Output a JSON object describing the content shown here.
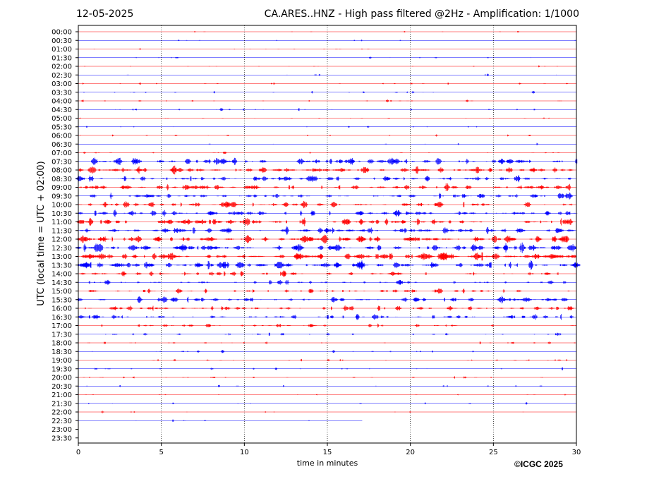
{
  "header": {
    "date": "12-05-2025",
    "title": "CA.ARES..HNZ - High pass filtered @2Hz - Amplification: 1/1000"
  },
  "footer": {
    "copyright": "©ICGC 2025"
  },
  "colors": {
    "series_a": "#ff0000",
    "series_b": "#0000ff",
    "grid": "#000000"
  },
  "chart_data": {
    "type": "line",
    "title": "CA.ARES..HNZ - High pass filtered @2Hz - Amplification: 1/1000",
    "xlabel": "time in minutes",
    "ylabel": "UTC (local time = UTC + 02:00)",
    "xlim": [
      0,
      30
    ],
    "x_ticks": [
      0,
      5,
      10,
      15,
      20,
      25,
      30
    ],
    "vertical_grid_at": [
      5,
      10,
      15,
      20,
      25
    ],
    "grid": true,
    "rows": [
      {
        "label": "00:00",
        "color": "#ff0000",
        "activity": 0.03,
        "end": 30
      },
      {
        "label": "00:30",
        "color": "#0000ff",
        "activity": 0.03,
        "end": 30
      },
      {
        "label": "01:00",
        "color": "#ff0000",
        "activity": 0.05,
        "end": 30
      },
      {
        "label": "01:30",
        "color": "#0000ff",
        "activity": 0.06,
        "end": 30
      },
      {
        "label": "02:00",
        "color": "#ff0000",
        "activity": 0.07,
        "end": 30
      },
      {
        "label": "02:30",
        "color": "#0000ff",
        "activity": 0.08,
        "end": 30
      },
      {
        "label": "03:00",
        "color": "#ff0000",
        "activity": 0.1,
        "end": 30
      },
      {
        "label": "03:30",
        "color": "#0000ff",
        "activity": 0.14,
        "end": 30
      },
      {
        "label": "04:00",
        "color": "#ff0000",
        "activity": 0.12,
        "end": 30
      },
      {
        "label": "04:30",
        "color": "#0000ff",
        "activity": 0.14,
        "end": 30
      },
      {
        "label": "05:00",
        "color": "#ff0000",
        "activity": 0.1,
        "end": 30
      },
      {
        "label": "05:30",
        "color": "#0000ff",
        "activity": 0.06,
        "end": 30
      },
      {
        "label": "06:00",
        "color": "#ff0000",
        "activity": 0.05,
        "end": 30
      },
      {
        "label": "06:30",
        "color": "#0000ff",
        "activity": 0.06,
        "end": 30
      },
      {
        "label": "07:00",
        "color": "#ff0000",
        "activity": 0.12,
        "end": 30
      },
      {
        "label": "07:30",
        "color": "#0000ff",
        "activity": 0.7,
        "end": 30
      },
      {
        "label": "08:00",
        "color": "#ff0000",
        "activity": 0.75,
        "end": 30
      },
      {
        "label": "08:30",
        "color": "#0000ff",
        "activity": 0.65,
        "end": 30
      },
      {
        "label": "09:00",
        "color": "#ff0000",
        "activity": 0.7,
        "end": 30
      },
      {
        "label": "09:30",
        "color": "#0000ff",
        "activity": 0.65,
        "end": 30
      },
      {
        "label": "10:00",
        "color": "#ff0000",
        "activity": 0.6,
        "end": 30
      },
      {
        "label": "10:30",
        "color": "#0000ff",
        "activity": 0.65,
        "end": 30
      },
      {
        "label": "11:00",
        "color": "#ff0000",
        "activity": 0.75,
        "end": 30
      },
      {
        "label": "11:30",
        "color": "#0000ff",
        "activity": 0.75,
        "end": 30
      },
      {
        "label": "12:00",
        "color": "#ff0000",
        "activity": 0.85,
        "end": 30
      },
      {
        "label": "12:30",
        "color": "#0000ff",
        "activity": 0.9,
        "end": 30
      },
      {
        "label": "13:00",
        "color": "#ff0000",
        "activity": 0.95,
        "end": 30
      },
      {
        "label": "13:30",
        "color": "#0000ff",
        "activity": 0.85,
        "end": 30
      },
      {
        "label": "14:00",
        "color": "#ff0000",
        "activity": 0.5,
        "end": 30
      },
      {
        "label": "14:30",
        "color": "#0000ff",
        "activity": 0.45,
        "end": 30
      },
      {
        "label": "15:00",
        "color": "#ff0000",
        "activity": 0.5,
        "end": 30
      },
      {
        "label": "15:30",
        "color": "#0000ff",
        "activity": 0.55,
        "end": 30
      },
      {
        "label": "16:00",
        "color": "#ff0000",
        "activity": 0.55,
        "end": 30
      },
      {
        "label": "16:30",
        "color": "#0000ff",
        "activity": 0.55,
        "end": 30
      },
      {
        "label": "17:00",
        "color": "#ff0000",
        "activity": 0.35,
        "end": 30
      },
      {
        "label": "17:30",
        "color": "#0000ff",
        "activity": 0.25,
        "end": 30
      },
      {
        "label": "18:00",
        "color": "#ff0000",
        "activity": 0.15,
        "end": 30
      },
      {
        "label": "18:30",
        "color": "#0000ff",
        "activity": 0.15,
        "end": 30
      },
      {
        "label": "19:00",
        "color": "#ff0000",
        "activity": 0.15,
        "end": 30
      },
      {
        "label": "19:30",
        "color": "#0000ff",
        "activity": 0.15,
        "end": 30
      },
      {
        "label": "20:00",
        "color": "#ff0000",
        "activity": 0.15,
        "end": 30
      },
      {
        "label": "20:30",
        "color": "#0000ff",
        "activity": 0.12,
        "end": 30
      },
      {
        "label": "21:00",
        "color": "#ff0000",
        "activity": 0.05,
        "end": 30
      },
      {
        "label": "21:30",
        "color": "#0000ff",
        "activity": 0.05,
        "end": 30
      },
      {
        "label": "22:00",
        "color": "#ff0000",
        "activity": 0.04,
        "end": 30
      },
      {
        "label": "22:30",
        "color": "#0000ff",
        "activity": 0.04,
        "end": 17.1
      },
      {
        "label": "23:00",
        "color": "#ff0000",
        "activity": 0,
        "end": 0
      },
      {
        "label": "23:30",
        "color": "#0000ff",
        "activity": 0,
        "end": 0
      }
    ]
  }
}
